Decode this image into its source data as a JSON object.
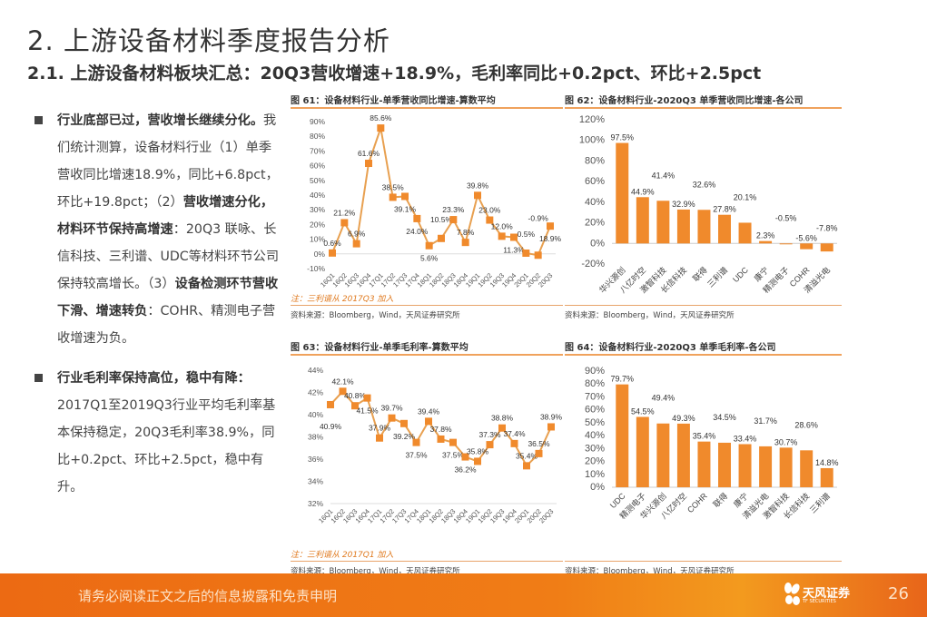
{
  "title": "2. 上游设备材料季度报告分析",
  "subtitle": "2.1. 上游设备材料板块汇总：20Q3营收增速+18.9%，毛利率同比+0.2pct、环比+2.5pct",
  "left": {
    "p1": [
      {
        "t": "行业底部已过，营收增长继续分化。",
        "bold": true
      },
      {
        "t": "我们统计测算，设备材料行业（1）单季营收同比增速18.9%，同比+6.8pct，环比+19.8pct；（2）",
        "bold": false
      },
      {
        "t": "营收增速分化，材料环节保持高增速",
        "bold": true
      },
      {
        "t": "：20Q3 联咏、长信科技、三利谱、UDC等材料环节公司保持较高增长。（3）",
        "bold": false
      },
      {
        "t": "设备检测环节营收下滑、增速转负",
        "bold": true
      },
      {
        "t": "：COHR、精测电子营收增速为负。",
        "bold": false
      }
    ],
    "p2": [
      {
        "t": "行业毛利率保持高位，稳中有降：",
        "bold": true
      },
      {
        "t": "2017Q1至2019Q3行业平均毛利率基本保持稳定，20Q3毛利率38.9%，同比+0.2pct、环比+2.5pct，稳中有升。",
        "bold": false
      }
    ]
  },
  "colors": {
    "accent": "#f08a2c",
    "line": "#e8a050"
  },
  "chart_data": [
    {
      "type": "line",
      "title": "图 61：设备材料行业-单季营收同比增速-算数平均",
      "note": "注：三利谱从 2017Q3 加入",
      "source": "资料来源：Bloomberg，Wind，天风证券研究所",
      "categories": [
        "16Q1",
        "16Q2",
        "16Q3",
        "16Q4",
        "17Q1",
        "17Q2",
        "17Q3",
        "17Q4",
        "18Q1",
        "18Q2",
        "18Q3",
        "18Q4",
        "19Q1",
        "19Q2",
        "19Q3",
        "19Q4",
        "20Q1",
        "20Q2",
        "20Q3"
      ],
      "values": [
        0.6,
        21.2,
        6.9,
        61.6,
        85.6,
        38.5,
        39.1,
        24.0,
        5.6,
        10.5,
        23.3,
        7.8,
        39.8,
        23.0,
        12.0,
        11.3,
        0.5,
        -0.9,
        18.9
      ],
      "ylim": [
        -10,
        90
      ],
      "yticks": [
        -10,
        0,
        10,
        20,
        30,
        40,
        50,
        60,
        70,
        80,
        90
      ],
      "unit": "%"
    },
    {
      "type": "bar",
      "title": "图 62：设备材料行业-2020Q3 单季营收同比增速-各公司",
      "source": "资料来源：Bloomberg，Wind，天风证券研究所",
      "categories": [
        "华兴源创",
        "八亿时空",
        "激智科技",
        "长信科技",
        "联得",
        "三利谱",
        "UDC",
        "康宁",
        "精测电子",
        "COHR",
        "清溢光电"
      ],
      "values": [
        97.5,
        44.9,
        41.4,
        32.9,
        32.6,
        27.8,
        20.1,
        2.3,
        -0.5,
        -5.6,
        -7.8
      ],
      "ylim": [
        -20,
        120
      ],
      "yticks": [
        -20,
        0,
        20,
        40,
        60,
        80,
        100,
        120
      ],
      "unit": "%"
    },
    {
      "type": "line",
      "title": "图 63：设备材料行业-单季毛利率-算数平均",
      "note": "注：三利谱从 2017Q1 加入",
      "source": "资料来源：Bloomberg，Wind，天风证券研究所",
      "categories": [
        "16Q1",
        "16Q2",
        "16Q3",
        "16Q4",
        "17Q1",
        "17Q2",
        "17Q3",
        "17Q4",
        "18Q1",
        "18Q2",
        "18Q3",
        "18Q4",
        "19Q1",
        "19Q2",
        "19Q3",
        "19Q4",
        "20Q1",
        "20Q2",
        "20Q3"
      ],
      "values": [
        40.9,
        42.1,
        40.8,
        41.5,
        37.9,
        39.7,
        39.2,
        37.5,
        39.4,
        37.8,
        37.5,
        36.2,
        35.8,
        37.3,
        38.8,
        37.4,
        35.4,
        36.5,
        38.9
      ],
      "ylim": [
        32,
        44
      ],
      "yticks": [
        32,
        34,
        36,
        38,
        40,
        42,
        44
      ],
      "unit": "%"
    },
    {
      "type": "bar",
      "title": "图 64：设备材料行业-2020Q3 单季毛利率-各公司",
      "source": "资料来源：Bloomberg，Wind，天风证券研究所",
      "categories": [
        "UDC",
        "精测电子",
        "华兴源创",
        "八亿时空",
        "COHR",
        "联得",
        "康宁",
        "清溢光电",
        "激智科技",
        "长信科技",
        "三利谱"
      ],
      "values": [
        79.7,
        54.5,
        49.4,
        49.3,
        35.4,
        34.5,
        33.4,
        31.7,
        30.7,
        28.6,
        14.8
      ],
      "ylim": [
        0,
        90
      ],
      "yticks": [
        0,
        10,
        20,
        30,
        40,
        50,
        60,
        70,
        80,
        90
      ],
      "unit": "%"
    }
  ],
  "footer": {
    "disclaimer": "请务必阅读正文之后的信息披露和免责申明",
    "logo_cn": "天风证券",
    "logo_en": "TF SECURITIES",
    "page": "26"
  }
}
